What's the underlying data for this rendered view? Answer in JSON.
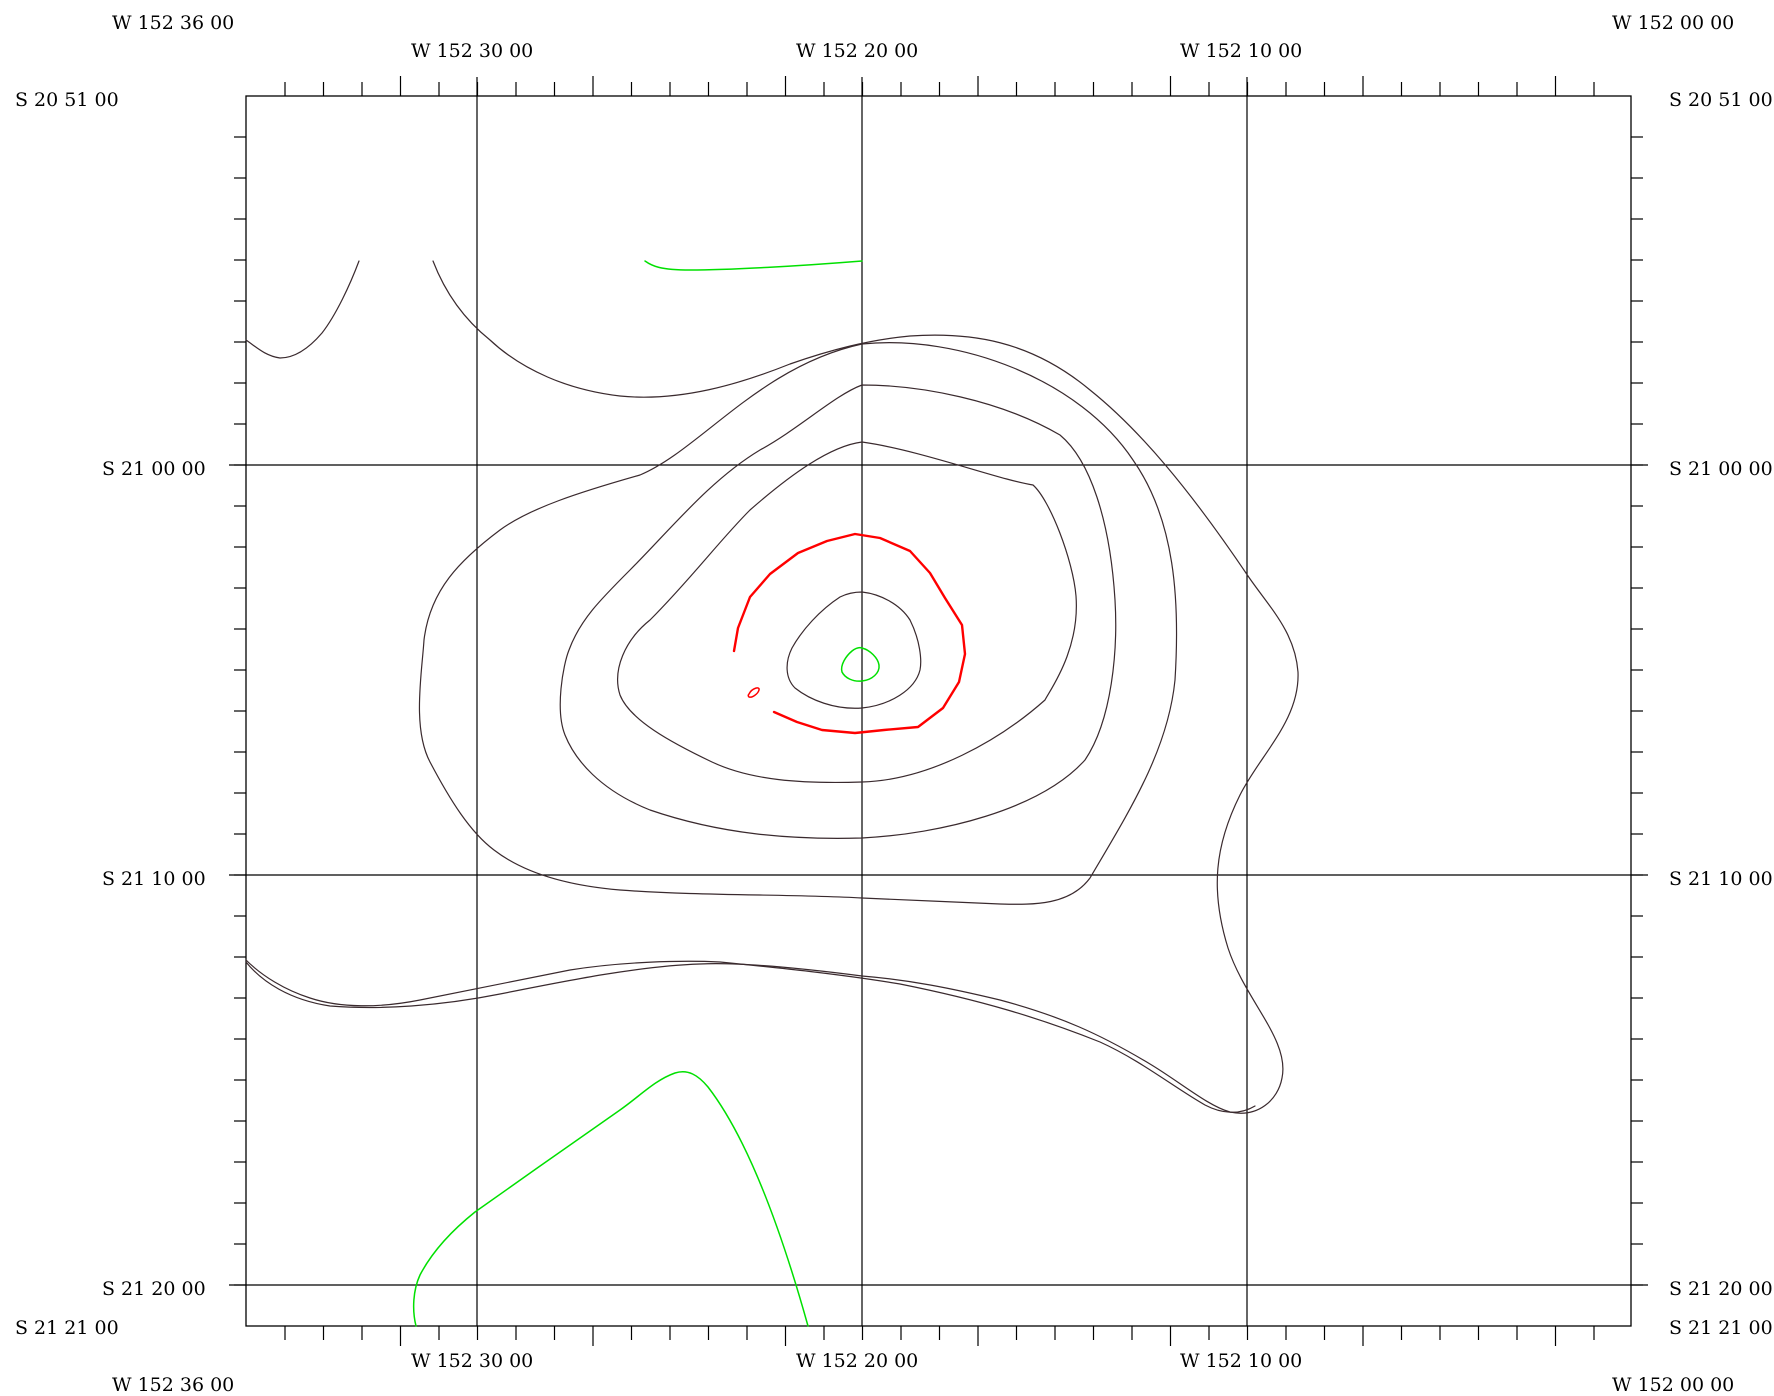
{
  "colors": {
    "contour": "#3a2a2e",
    "contour_green": "#00e000",
    "contour_red": "#ff0000",
    "grid": "#000000"
  },
  "corners": {
    "top_left_lon": "W 152 36 00",
    "top_right_lon": "W 152 00 00",
    "bottom_left_lon": "W 152 36 00",
    "bottom_right_lon": "W 152 00 00",
    "top_left_lat": "S 20 51 00",
    "top_right_lat": "S 20 51 00",
    "bottom_left_lat": "S 21 21 00",
    "bottom_right_lat": "S 21 21 00"
  },
  "meridians": [
    {
      "label": "W 152 30 00"
    },
    {
      "label": "W 152 20 00"
    },
    {
      "label": "W 152 10 00"
    }
  ],
  "parallels": [
    {
      "label": "S 21 00 00"
    },
    {
      "label": "S 21 10 00"
    },
    {
      "label": "S 21 20 00"
    }
  ],
  "contours": [
    {
      "name": "contour-green-north",
      "color": "contour_green"
    },
    {
      "name": "contour-green-center",
      "color": "contour_green"
    },
    {
      "name": "contour-green-south",
      "color": "contour_green"
    },
    {
      "name": "contour-red-ring",
      "color": "contour_red"
    },
    {
      "name": "contour-red-small",
      "color": "contour_red"
    },
    {
      "name": "contour-dark-nw-arc",
      "color": "contour"
    },
    {
      "name": "contour-dark-outer",
      "color": "contour"
    },
    {
      "name": "contour-dark-ring-3",
      "color": "contour"
    },
    {
      "name": "contour-dark-ring-2",
      "color": "contour"
    },
    {
      "name": "contour-dark-ring-1",
      "color": "contour"
    },
    {
      "name": "contour-dark-inner",
      "color": "contour"
    },
    {
      "name": "contour-dark-south",
      "color": "contour"
    }
  ]
}
